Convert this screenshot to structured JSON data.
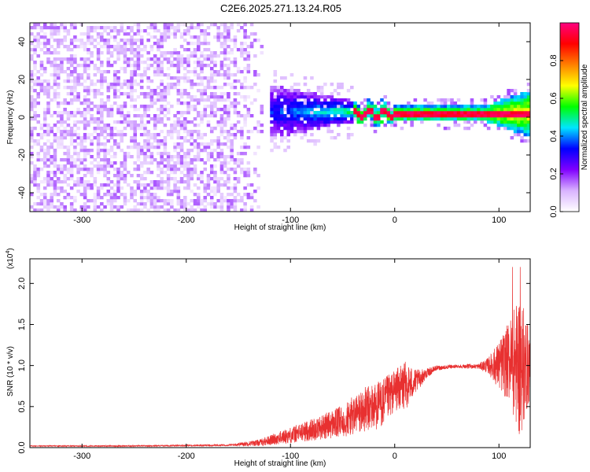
{
  "title": "C2E6.2025.271.13.24.R05",
  "chart_data": [
    {
      "type": "heatmap",
      "xlabel": "Height of straight line (km)",
      "ylabel": "Frequency (Hz)",
      "xlim": [
        -350,
        130
      ],
      "ylim": [
        -50,
        50
      ],
      "x_ticks": [
        -300,
        -200,
        -100,
        0,
        100
      ],
      "x_tick_labels": [
        "-300",
        "-200",
        "-100",
        "0",
        "100"
      ],
      "y_ticks": [
        -40,
        -20,
        0,
        20,
        40
      ],
      "y_tick_labels": [
        "-40",
        "-20",
        "0",
        "20",
        "40"
      ],
      "colorbar": {
        "label": "Normalized spectral amplitude",
        "range": [
          0,
          1
        ],
        "ticks": [
          0.0,
          0.2,
          0.4,
          0.6,
          0.8
        ],
        "tick_labels": [
          "0.0",
          "0.2",
          "0.4",
          "0.6",
          "0.8"
        ],
        "colors": [
          "#ffffff",
          "#d9b3ff",
          "#8000ff",
          "#0000ff",
          "#00e5ff",
          "#00ff00",
          "#ffff00",
          "#ff8000",
          "#ff0000",
          "#ff0080"
        ]
      },
      "regions": [
        {
          "x_range": [
            -350,
            -120
          ],
          "f_range": [
            -50,
            50
          ],
          "amplitude": 0.1,
          "pattern": "broadband noise"
        },
        {
          "x_range": [
            -120,
            -40
          ],
          "f_range": [
            -12,
            18
          ],
          "amplitude": 0.3,
          "pattern": "spreading"
        },
        {
          "x_range": [
            -40,
            130
          ],
          "f_range": [
            -2,
            6
          ],
          "amplitude": 0.9,
          "center_frequency": 2,
          "pattern": "narrow carrier"
        }
      ]
    },
    {
      "type": "line",
      "xlabel": "Height of straight line (km)",
      "ylabel": "SNR (10 * v/v)",
      "y_multiplier_label": "(x10",
      "y_multiplier_exp": "4",
      "y_multiplier_close": ")",
      "xlim": [
        -350,
        130
      ],
      "ylim": [
        0,
        2.3
      ],
      "x_ticks": [
        -300,
        -200,
        -100,
        0,
        100
      ],
      "x_tick_labels": [
        "-300",
        "-200",
        "-100",
        "0",
        "100"
      ],
      "y_ticks": [
        0,
        0.5,
        1.0,
        1.5,
        2.0
      ],
      "y_tick_labels": [
        "0.0",
        "0.5",
        "1.0",
        "1.5",
        "2.0"
      ],
      "line_color": "#e83030",
      "envelope": {
        "x": [
          -350,
          -250,
          -160,
          -130,
          -100,
          -70,
          -50,
          -30,
          -10,
          0,
          10,
          20,
          30,
          40,
          60,
          80,
          90,
          100,
          110,
          120,
          130
        ],
        "y_mid": [
          0.02,
          0.02,
          0.03,
          0.06,
          0.15,
          0.25,
          0.32,
          0.45,
          0.55,
          0.7,
          0.75,
          0.8,
          0.9,
          0.97,
          0.99,
          0.99,
          1.0,
          1.0,
          1.05,
          1.0,
          1.0
        ],
        "y_amp": [
          0.005,
          0.008,
          0.01,
          0.04,
          0.1,
          0.15,
          0.2,
          0.28,
          0.3,
          0.25,
          0.3,
          0.15,
          0.06,
          0.03,
          0.02,
          0.03,
          0.1,
          0.3,
          0.5,
          0.9,
          0.4
        ]
      }
    }
  ]
}
